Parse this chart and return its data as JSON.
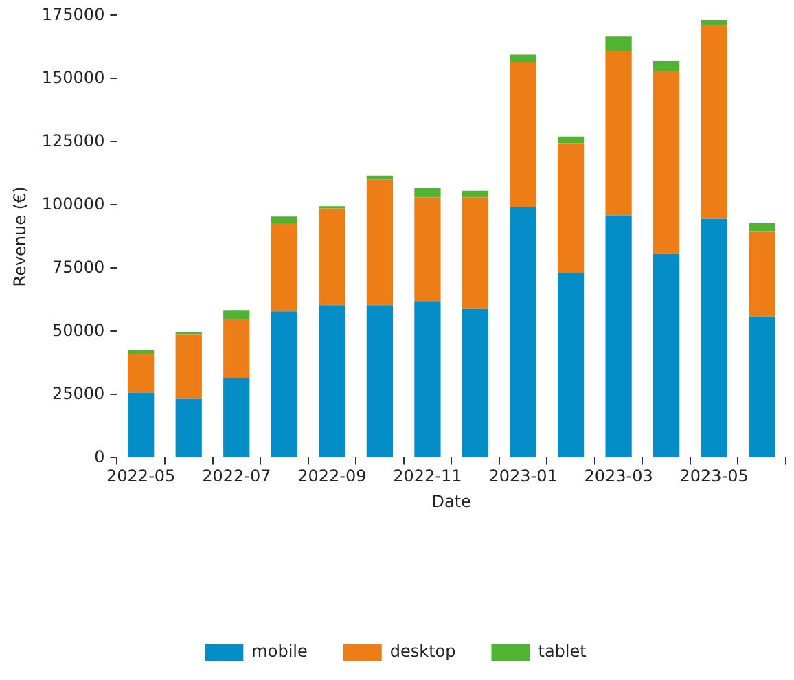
{
  "chart_data": {
    "type": "bar",
    "stacked": true,
    "xlabel": "Date",
    "ylabel": "Revenue (€)",
    "categories": [
      "2022-05",
      null,
      "2022-07",
      null,
      "2022-09",
      null,
      "2022-11",
      null,
      "2023-01",
      null,
      "2023-03",
      null,
      "2023-05",
      null
    ],
    "ylim": [
      0,
      175000
    ],
    "yticks": [
      0,
      25000,
      50000,
      75000,
      100000,
      125000,
      150000,
      175000
    ],
    "grid": false,
    "legend": "bottom",
    "series": [
      {
        "name": "mobile",
        "color": "#058dc7",
        "values": [
          25800,
          23300,
          31400,
          57900,
          60400,
          60400,
          62000,
          58900,
          99100,
          73200,
          95900,
          80600,
          94500,
          55900
        ]
      },
      {
        "name": "desktop",
        "color": "#ed7e17",
        "values": [
          15300,
          25600,
          23400,
          34900,
          38200,
          49700,
          41000,
          44100,
          57500,
          51200,
          65100,
          72300,
          76700,
          33500
        ]
      },
      {
        "name": "tablet",
        "color": "#50b432",
        "values": [
          1400,
          700,
          3400,
          2600,
          900,
          1500,
          3600,
          2600,
          2900,
          2700,
          5600,
          4000,
          2000,
          3400
        ]
      }
    ]
  }
}
